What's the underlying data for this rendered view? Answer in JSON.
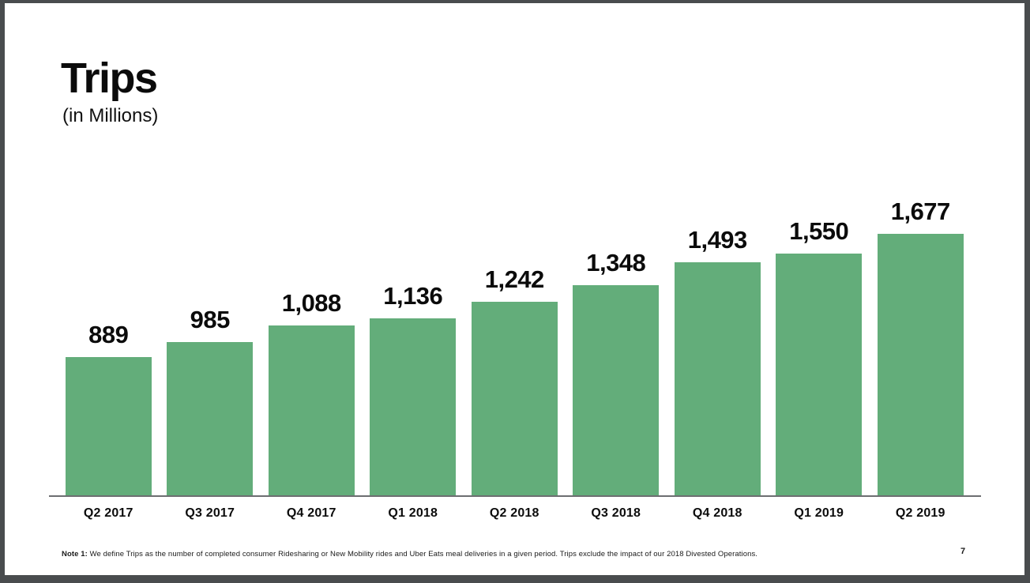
{
  "slide": {
    "title": "Trips",
    "subtitle": "(in Millions)",
    "footnote_label": "Note 1:",
    "footnote_text": " We define Trips as the number of completed consumer Ridesharing or New Mobility rides and Uber Eats meal deliveries in a given period. Trips exclude the impact of our 2018 Divested Operations.",
    "page_number": "7"
  },
  "colors": {
    "bar_fill": "#63ad7a",
    "axis_line": "#6d6e71",
    "frame": "#494c4e",
    "slide_background": "#ffffff",
    "text": "#0b0b0b"
  },
  "chart_data": {
    "type": "bar",
    "title": "Trips (in Millions)",
    "xlabel": "",
    "ylabel": "Trips (in Millions)",
    "categories": [
      "Q2 2017",
      "Q3 2017",
      "Q4 2017",
      "Q1 2018",
      "Q2 2018",
      "Q3 2018",
      "Q4 2018",
      "Q1 2019",
      "Q2 2019"
    ],
    "values": [
      889,
      985,
      1088,
      1136,
      1242,
      1348,
      1493,
      1550,
      1677
    ],
    "value_labels": [
      "889",
      "985",
      "1,088",
      "1,136",
      "1,242",
      "1,348",
      "1,493",
      "1,550",
      "1,677"
    ],
    "ylim": [
      0,
      1677
    ],
    "grid": false,
    "legend": "none",
    "bar_color": "#63ad7a",
    "data_labels": "above-bars"
  }
}
